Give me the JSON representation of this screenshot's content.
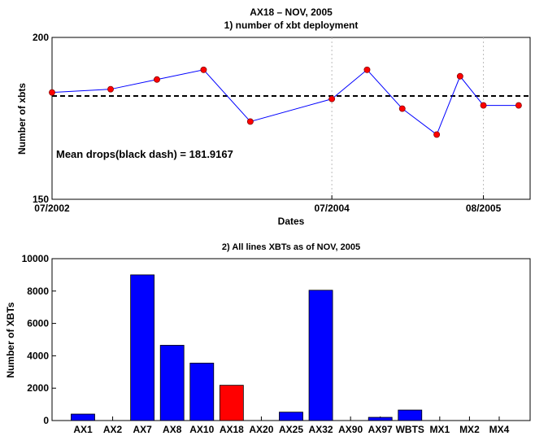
{
  "figure": {
    "suptitle": "AX18 – NOV, 2005"
  },
  "chart_data": [
    {
      "type": "line",
      "title": "1) number of xbt deployment",
      "xlabel": "Dates",
      "ylabel": "Number of xbts",
      "ylim": [
        150,
        200
      ],
      "yticks": [
        "150",
        "200"
      ],
      "xticklabels": [
        "07/2002",
        "07/2004",
        "08/2005"
      ],
      "grid": "vertical dotted at x ticks",
      "annotation": "Mean drops(black dash) = 181.9167",
      "mean_value": 181.9167,
      "series": [
        {
          "points": [
            {
              "x": "07/2002",
              "y": 183
            },
            {
              "x": "2002-12",
              "y": 184
            },
            {
              "x": "2003-04",
              "y": 187
            },
            {
              "x": "2003-08",
              "y": 190
            },
            {
              "x": "2003-12",
              "y": 174
            },
            {
              "x": "07/2004",
              "y": 181
            },
            {
              "x": "2004-10",
              "y": 190
            },
            {
              "x": "2005-01",
              "y": 178
            },
            {
              "x": "2005-04",
              "y": 170
            },
            {
              "x": "2005-06",
              "y": 188
            },
            {
              "x": "08/2005",
              "y": 179
            },
            {
              "x": "2005-11",
              "y": 179
            }
          ]
        }
      ],
      "colors": {
        "line": "#0000ff",
        "marker": "#ff0000",
        "mean": "#000000"
      }
    },
    {
      "type": "bar",
      "title": "2) All lines XBTs as of NOV, 2005",
      "xlabel": "",
      "ylabel": "Number of XBTs",
      "ylim": [
        0,
        10000
      ],
      "yticks": [
        "0",
        "2000",
        "4000",
        "6000",
        "8000",
        "10000"
      ],
      "categories": [
        "AX1",
        "AX2",
        "AX7",
        "AX8",
        "AX10",
        "AX18",
        "AX20",
        "AX25",
        "AX32",
        "AX90",
        "AX97",
        "WBTS",
        "MX1",
        "MX2",
        "MX4"
      ],
      "values": [
        400,
        0,
        9000,
        4650,
        3550,
        2180,
        0,
        520,
        8050,
        0,
        200,
        650,
        0,
        0,
        0
      ],
      "highlight": "AX18",
      "colors": {
        "bar": "#0000ff",
        "highlight": "#ff0000"
      }
    }
  ]
}
